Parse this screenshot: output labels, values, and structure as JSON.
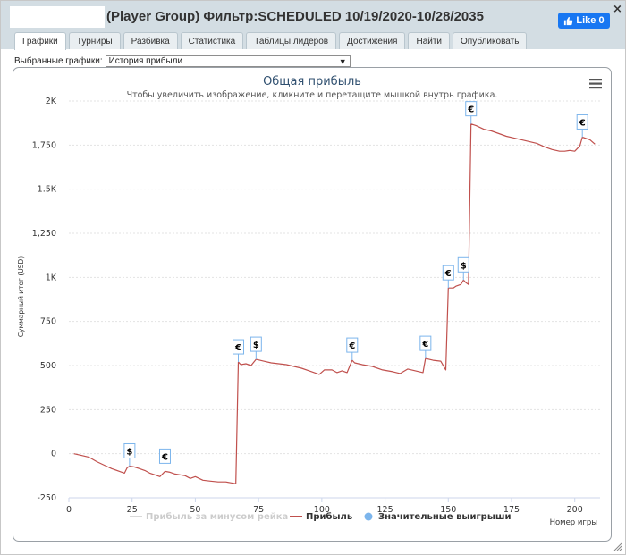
{
  "window": {
    "title": "(Player Group) Фильтр:SCHEDULED 10/19/2020-10/28/2035",
    "close_label": "×",
    "like_label": "Like 0"
  },
  "tabs": [
    {
      "label": "Графики",
      "active": true
    },
    {
      "label": "Турниры",
      "active": false
    },
    {
      "label": "Разбивка",
      "active": false
    },
    {
      "label": "Статистика",
      "active": false
    },
    {
      "label": "Таблицы лидеров",
      "active": false
    },
    {
      "label": "Достижения",
      "active": false
    },
    {
      "label": "Найти",
      "active": false
    },
    {
      "label": "Опубликовать",
      "active": false
    }
  ],
  "chart_selector": {
    "label": "Выбранные графики:",
    "value": "История прибыли"
  },
  "colors": {
    "profit_line": "#c0504d",
    "rake_line": "#d9d9d9",
    "big_win_marker": "#7cb5ec",
    "title": "#2f4f6f",
    "titlebar": "#d3dde3",
    "like_button": "#1877f2"
  },
  "chart_data": {
    "type": "line",
    "title": "Общая прибыль",
    "subtitle": "Чтобы увеличить изображение, кликните и перетащите мышкой внутрь графика.",
    "ylabel": "Суммарный итог (USD)",
    "xlabel": "Номер игры",
    "xlim": [
      0,
      210
    ],
    "ylim": [
      -250,
      2000
    ],
    "x_ticks": [
      0,
      25,
      50,
      75,
      100,
      125,
      150,
      175,
      200
    ],
    "y_ticks": [
      {
        "value": -250,
        "label": "-250"
      },
      {
        "value": 0,
        "label": "0"
      },
      {
        "value": 250,
        "label": "250"
      },
      {
        "value": 500,
        "label": "500"
      },
      {
        "value": 750,
        "label": "750"
      },
      {
        "value": 1000,
        "label": "1K"
      },
      {
        "value": 1250,
        "label": "1,250"
      },
      {
        "value": 1500,
        "label": "1.5K"
      },
      {
        "value": 1750,
        "label": "1,750"
      },
      {
        "value": 2000,
        "label": "2K"
      }
    ],
    "grid": "horizontal-dotted",
    "legend_position": "bottom",
    "series": [
      {
        "name": "Прибыль",
        "points": [
          [
            2,
            0
          ],
          [
            5,
            -10
          ],
          [
            8,
            -20
          ],
          [
            11,
            -45
          ],
          [
            14,
            -65
          ],
          [
            17,
            -85
          ],
          [
            20,
            -100
          ],
          [
            22,
            -110
          ],
          [
            23,
            -80
          ],
          [
            24,
            -70
          ],
          [
            26,
            -75
          ],
          [
            28,
            -85
          ],
          [
            30,
            -95
          ],
          [
            32,
            -110
          ],
          [
            34,
            -120
          ],
          [
            36,
            -130
          ],
          [
            38,
            -100
          ],
          [
            40,
            -105
          ],
          [
            42,
            -115
          ],
          [
            44,
            -120
          ],
          [
            46,
            -125
          ],
          [
            48,
            -140
          ],
          [
            50,
            -130
          ],
          [
            53,
            -150
          ],
          [
            56,
            -155
          ],
          [
            59,
            -160
          ],
          [
            62,
            -160
          ],
          [
            64,
            -165
          ],
          [
            66,
            -170
          ],
          [
            67,
            520
          ],
          [
            68,
            505
          ],
          [
            70,
            510
          ],
          [
            72,
            500
          ],
          [
            74,
            535
          ],
          [
            77,
            525
          ],
          [
            80,
            515
          ],
          [
            83,
            510
          ],
          [
            86,
            505
          ],
          [
            89,
            495
          ],
          [
            92,
            485
          ],
          [
            95,
            470
          ],
          [
            97,
            460
          ],
          [
            99,
            450
          ],
          [
            101,
            475
          ],
          [
            104,
            475
          ],
          [
            106,
            460
          ],
          [
            108,
            470
          ],
          [
            110,
            460
          ],
          [
            112,
            530
          ],
          [
            113,
            515
          ],
          [
            116,
            505
          ],
          [
            120,
            495
          ],
          [
            124,
            475
          ],
          [
            128,
            465
          ],
          [
            131,
            455
          ],
          [
            134,
            480
          ],
          [
            137,
            470
          ],
          [
            140,
            460
          ],
          [
            141,
            540
          ],
          [
            144,
            530
          ],
          [
            147,
            525
          ],
          [
            149,
            475
          ],
          [
            150,
            940
          ],
          [
            152,
            940
          ],
          [
            153,
            950
          ],
          [
            155,
            960
          ],
          [
            156,
            985
          ],
          [
            157,
            970
          ],
          [
            158,
            960
          ],
          [
            159,
            1870
          ],
          [
            161,
            1860
          ],
          [
            164,
            1840
          ],
          [
            167,
            1830
          ],
          [
            170,
            1815
          ],
          [
            173,
            1800
          ],
          [
            176,
            1790
          ],
          [
            179,
            1780
          ],
          [
            182,
            1770
          ],
          [
            185,
            1760
          ],
          [
            188,
            1740
          ],
          [
            191,
            1725
          ],
          [
            194,
            1715
          ],
          [
            196,
            1715
          ],
          [
            198,
            1720
          ],
          [
            200,
            1715
          ],
          [
            202,
            1745
          ],
          [
            203,
            1795
          ],
          [
            206,
            1780
          ],
          [
            208,
            1755
          ]
        ],
        "color": "#c0504d"
      },
      {
        "name": "Прибыль за минусом рейка",
        "points": [],
        "color": "#d9d9d9"
      }
    ],
    "annotations": [
      {
        "x": 24,
        "y": -70,
        "label": "$"
      },
      {
        "x": 38,
        "y": -100,
        "label": "€"
      },
      {
        "x": 67,
        "y": 520,
        "label": "€"
      },
      {
        "x": 74,
        "y": 535,
        "label": "$"
      },
      {
        "x": 112,
        "y": 530,
        "label": "€"
      },
      {
        "x": 141,
        "y": 540,
        "label": "€"
      },
      {
        "x": 150,
        "y": 940,
        "label": "€"
      },
      {
        "x": 156,
        "y": 985,
        "label": "$"
      },
      {
        "x": 159,
        "y": 1870,
        "label": "€"
      },
      {
        "x": 203,
        "y": 1795,
        "label": "€"
      }
    ],
    "legend": [
      {
        "label": "Прибыль за минусом рейка",
        "symbol": "line",
        "color": "#d9d9d9",
        "hidden": true
      },
      {
        "label": "Прибыль",
        "symbol": "line",
        "color": "#c0504d",
        "hidden": false
      },
      {
        "label": "Значительные выигрыши",
        "symbol": "circle",
        "color": "#7cb5ec",
        "hidden": false
      }
    ]
  }
}
